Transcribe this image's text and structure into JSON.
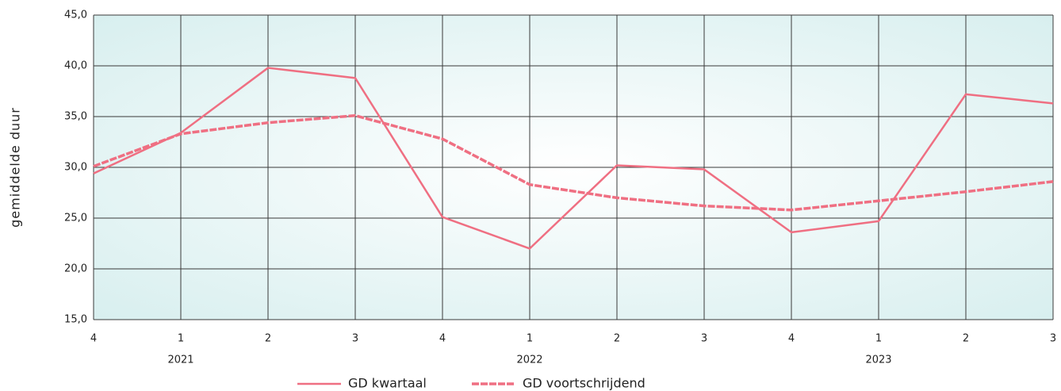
{
  "chart_data": {
    "type": "line",
    "y_label": "gemiddelde duur",
    "categories": [
      "4",
      "1",
      "2",
      "3",
      "4",
      "1",
      "2",
      "3",
      "4",
      "1",
      "2",
      "3"
    ],
    "years": [
      null,
      "2021",
      null,
      null,
      null,
      "2022",
      null,
      null,
      null,
      "2023",
      null,
      null
    ],
    "series": [
      {
        "name": "GD kwartaal",
        "color": "#ef6f82",
        "dashed": false,
        "values": [
          29.4,
          33.4,
          39.8,
          38.8,
          25.1,
          22.0,
          30.2,
          29.8,
          23.6,
          24.7,
          37.2,
          36.3
        ]
      },
      {
        "name": "GD voortschrijdend",
        "color": "#ef6f82",
        "dashed": true,
        "values": [
          30.1,
          33.3,
          34.4,
          35.1,
          32.8,
          28.3,
          27.0,
          26.2,
          25.8,
          26.7,
          27.6,
          28.6
        ]
      }
    ],
    "ylim": [
      15,
      45
    ],
    "yticks": [
      {
        "value": 15,
        "label": "15,0"
      },
      {
        "value": 20,
        "label": "20,0"
      },
      {
        "value": 25,
        "label": "25,0"
      },
      {
        "value": 30,
        "label": "30,0"
      },
      {
        "value": 35,
        "label": "35,0"
      },
      {
        "value": 40,
        "label": "40,0"
      },
      {
        "value": 45,
        "label": "45,0"
      }
    ],
    "grid": true
  }
}
